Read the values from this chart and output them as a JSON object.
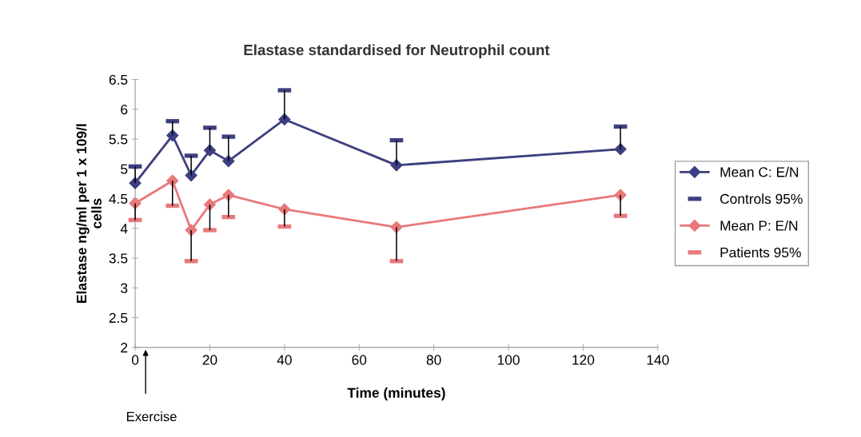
{
  "chart_data": {
    "type": "line",
    "title": "Elastase standardised for Neutrophil count",
    "xlabel": "Time (minutes)",
    "ylabel": "Elastase ng/ml per 1 x 109/l\ncells",
    "x": [
      0,
      10,
      15,
      20,
      25,
      40,
      70,
      130
    ],
    "series": [
      {
        "name": "Mean C: E/N",
        "marker": "diamond",
        "color": "#3d3f80",
        "values": [
          4.76,
          5.56,
          4.89,
          5.31,
          5.13,
          5.83,
          5.06,
          5.33
        ],
        "errors": [
          [
            4.76,
            5.04
          ],
          [
            5.56,
            5.8
          ],
          [
            4.89,
            5.22
          ],
          [
            5.31,
            5.69
          ],
          [
            5.13,
            5.54
          ],
          [
            5.83,
            6.32
          ],
          [
            5.06,
            5.48
          ],
          [
            5.33,
            5.71
          ]
        ]
      },
      {
        "name": "Controls 95%",
        "type": "scatter",
        "color": "#3d3f80",
        "values": [
          5.04,
          5.8,
          5.22,
          5.69,
          5.54,
          6.32,
          5.48,
          5.71
        ]
      },
      {
        "name": "Mean P: E/N",
        "marker": "diamond",
        "color": "#e8787a",
        "values": [
          4.42,
          4.8,
          3.97,
          4.4,
          4.56,
          4.32,
          4.02,
          4.56
        ],
        "errors": [
          [
            4.14,
            4.42
          ],
          [
            4.38,
            4.8
          ],
          [
            3.45,
            3.97
          ],
          [
            3.97,
            4.4
          ],
          [
            4.19,
            4.56
          ],
          [
            4.03,
            4.32
          ],
          [
            3.45,
            4.02
          ],
          [
            4.21,
            4.56
          ]
        ]
      },
      {
        "name": "Patients 95%",
        "type": "scatter",
        "color": "#e8787a",
        "values": [
          4.14,
          4.38,
          3.45,
          3.97,
          4.19,
          4.03,
          3.45,
          4.21
        ]
      }
    ],
    "xlim": [
      0,
      140
    ],
    "xticks": [
      0,
      20,
      40,
      60,
      80,
      100,
      120,
      140
    ],
    "ylim": [
      2,
      6.5
    ],
    "yticks": [
      2,
      2.5,
      3,
      3.5,
      4,
      4.5,
      5,
      5.5,
      6,
      6.5
    ],
    "annotations": [
      "Exercise"
    ],
    "legend": "right",
    "grid": false
  }
}
